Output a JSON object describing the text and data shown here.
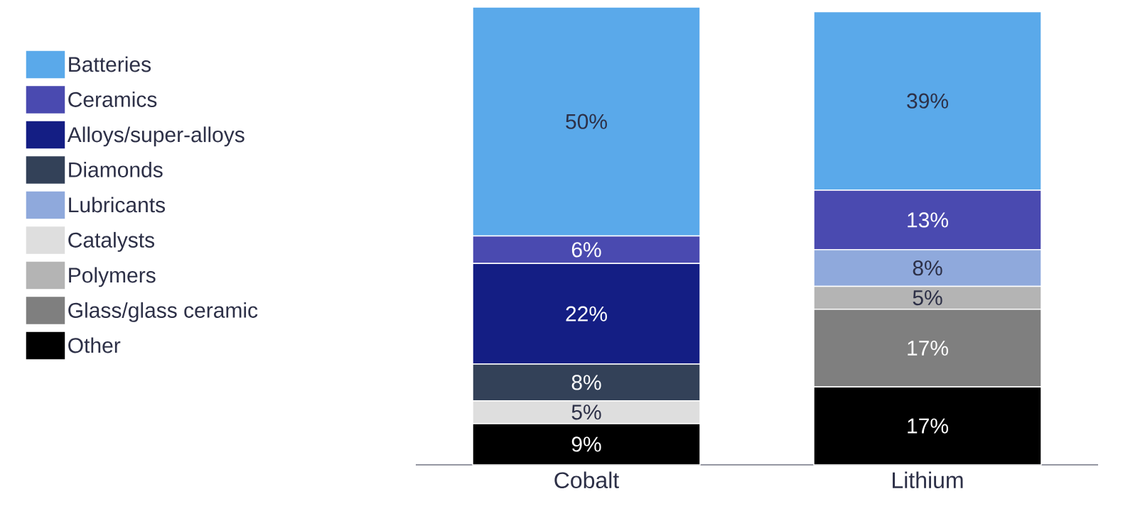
{
  "chart_data": {
    "type": "bar",
    "stacked": true,
    "categories": [
      "Cobalt",
      "Lithium"
    ],
    "legend": "left",
    "series": [
      {
        "name": "Other",
        "color": "#000000",
        "values": [
          9,
          17
        ],
        "value_labels": [
          "9%",
          "17%"
        ]
      },
      {
        "name": "Glass/glass ceramic",
        "color": "#7f7f7f",
        "values": [
          null,
          17
        ],
        "value_labels": [
          null,
          "17%"
        ]
      },
      {
        "name": "Polymers",
        "color": "#b4b4b4",
        "values": [
          null,
          5
        ],
        "value_labels": [
          null,
          "5%"
        ]
      },
      {
        "name": "Catalysts",
        "color": "#dedede",
        "values": [
          5,
          null
        ],
        "value_labels": [
          "5%",
          null
        ]
      },
      {
        "name": "Lubricants",
        "color": "#8fa9dc",
        "values": [
          null,
          8
        ],
        "value_labels": [
          null,
          "8%"
        ]
      },
      {
        "name": "Diamonds",
        "color": "#334158",
        "values": [
          8,
          null
        ],
        "value_labels": [
          "8%",
          null
        ]
      },
      {
        "name": "Alloys/super-alloys",
        "color": "#141e84",
        "values": [
          22,
          null
        ],
        "value_labels": [
          "22%",
          null
        ]
      },
      {
        "name": "Ceramics",
        "color": "#4a4ab0",
        "values": [
          6,
          13
        ],
        "value_labels": [
          "6%",
          "13%"
        ]
      },
      {
        "name": "Batteries",
        "color": "#5aa9ea",
        "values": [
          50,
          39
        ],
        "value_labels": [
          "50%",
          "39%"
        ]
      }
    ]
  }
}
